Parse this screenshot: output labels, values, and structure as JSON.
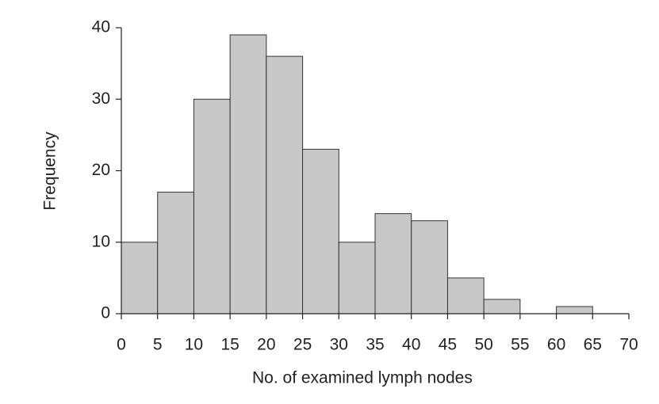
{
  "chart_data": {
    "type": "histogram",
    "x_label": "No. of examined lymph nodes",
    "y_label": "Frequency",
    "bins": [
      0,
      5,
      10,
      15,
      20,
      25,
      30,
      35,
      40,
      45,
      50,
      55,
      60,
      65,
      70
    ],
    "values": [
      10,
      17,
      30,
      39,
      36,
      23,
      10,
      14,
      13,
      5,
      2,
      0,
      1,
      0
    ],
    "color": "#c8c8c8",
    "xlim": [
      0,
      70
    ],
    "xticks": [
      0,
      5,
      10,
      15,
      20,
      25,
      30,
      35,
      40,
      45,
      50,
      55,
      60,
      65,
      70
    ],
    "ylim": [
      0,
      40
    ],
    "yticks": [
      0,
      10,
      20,
      30,
      40
    ],
    "grid": false
  }
}
